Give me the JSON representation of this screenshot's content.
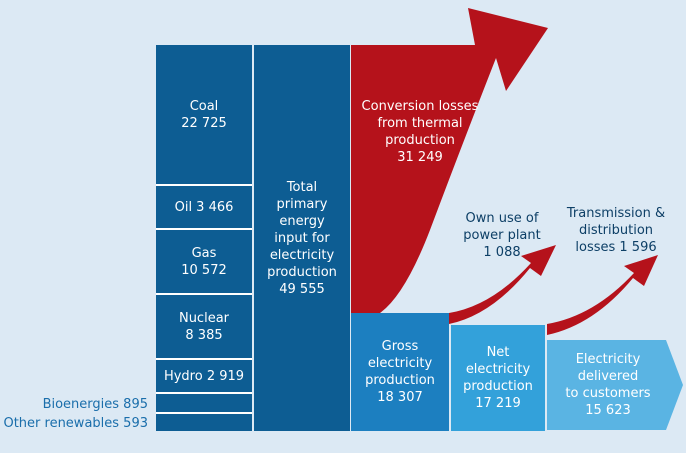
{
  "colors": {
    "background": "#dce9f4",
    "primary_dark_blue": "#0d5d93",
    "mid_blue": "#1c7fc0",
    "light_blue": "#33a1da",
    "arrow_red": "#b5121b",
    "side_label_blue": "#1a6eab"
  },
  "sources": {
    "coal": {
      "name": "Coal",
      "value": "22 725"
    },
    "oil": {
      "label": "Oil 3 466"
    },
    "gas": {
      "name": "Gas",
      "value": "10 572"
    },
    "nuclear": {
      "name": "Nuclear",
      "value": "8 385"
    },
    "hydro": {
      "label": "Hydro 2 919"
    },
    "bioenergies": {
      "label": "Bioenergies 895"
    },
    "other_renewables": {
      "label": "Other renewables 593"
    }
  },
  "total_input": {
    "lines": [
      "Total",
      "primary",
      "energy",
      "input for",
      "electricity",
      "production"
    ],
    "value": "49 555"
  },
  "conversion_losses": {
    "lines": [
      "Conversion losses",
      "from thermal",
      "production"
    ],
    "value": "31 249"
  },
  "gross": {
    "lines": [
      "Gross",
      "electricity",
      "production"
    ],
    "value": "18 307"
  },
  "own_use": {
    "lines": [
      "Own use of",
      "power plant"
    ],
    "value": "1 088"
  },
  "net": {
    "lines": [
      "Net",
      "electricity",
      "production"
    ],
    "value": "17 219"
  },
  "transmission": {
    "lines": [
      "Transmission &",
      "distribution"
    ],
    "value_line": "losses 1 596"
  },
  "delivered": {
    "lines": [
      "Electricity",
      "delivered",
      "to customers"
    ],
    "value": "15 623"
  }
}
